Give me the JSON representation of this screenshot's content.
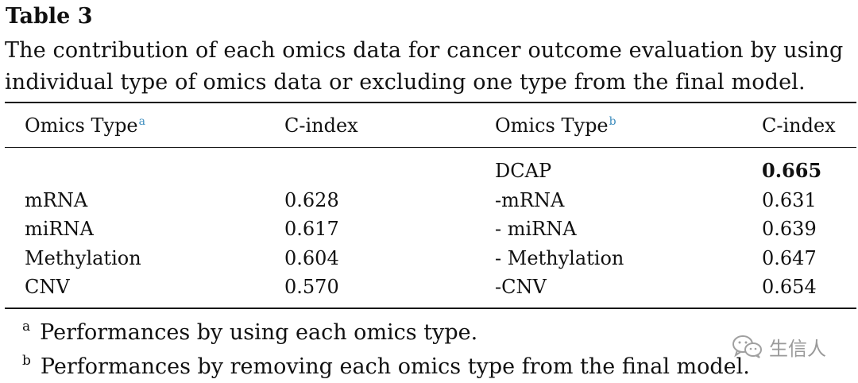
{
  "caption": {
    "label": "Table 3",
    "text": "The contribution of each omics data for cancer outcome evaluation by using individual type of omics data or excluding one type from the final model."
  },
  "table": {
    "headers": {
      "left_type": "Omics Type",
      "left_type_ref": "a",
      "left_cindex": "C-index",
      "right_type": "Omics Type",
      "right_type_ref": "b",
      "right_cindex": "C-index"
    },
    "rows": [
      {
        "left_type": "",
        "left_cindex": "",
        "right_type": "DCAP",
        "right_cindex": "0.665"
      },
      {
        "left_type": "mRNA",
        "left_cindex": "0.628",
        "right_type": "-mRNA",
        "right_cindex": "0.631"
      },
      {
        "left_type": "miRNA",
        "left_cindex": "0.617",
        "right_type": "- miRNA",
        "right_cindex": "0.639"
      },
      {
        "left_type": "Methylation",
        "left_cindex": "0.604",
        "right_type": "- Methylation",
        "right_cindex": "0.647"
      },
      {
        "left_type": "CNV",
        "left_cindex": "0.570",
        "right_type": "-CNV",
        "right_cindex": "0.654"
      }
    ]
  },
  "footnotes": [
    {
      "mark": "a",
      "text": "Performances by using each omics type."
    },
    {
      "mark": "b",
      "text": "Performances by removing each omics type from the final model."
    }
  ],
  "watermark": {
    "icon": "wechat-icon",
    "text": "生信人"
  }
}
